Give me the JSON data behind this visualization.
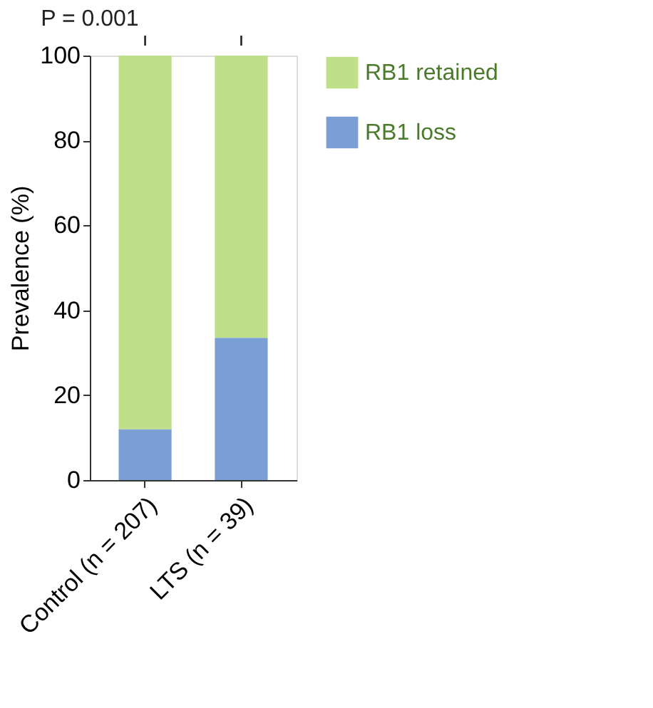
{
  "chart_data": {
    "type": "bar",
    "stacked": true,
    "ylabel": "Prevalence (%)",
    "categories": [
      "Control (n = 207)",
      "LTS (n = 39)"
    ],
    "series": [
      {
        "name": "RB1 loss",
        "color": "#7b9fd4",
        "values": [
          12,
          33.5
        ]
      },
      {
        "name": "RB1 retained",
        "color": "#bfdf88",
        "values": [
          88,
          66.5
        ]
      }
    ],
    "ylim": [
      0,
      100
    ],
    "yticks": [
      0,
      20,
      40,
      60,
      80,
      100
    ],
    "grid": false,
    "legend": "top right",
    "annotations": [
      "P = 0.001"
    ]
  }
}
